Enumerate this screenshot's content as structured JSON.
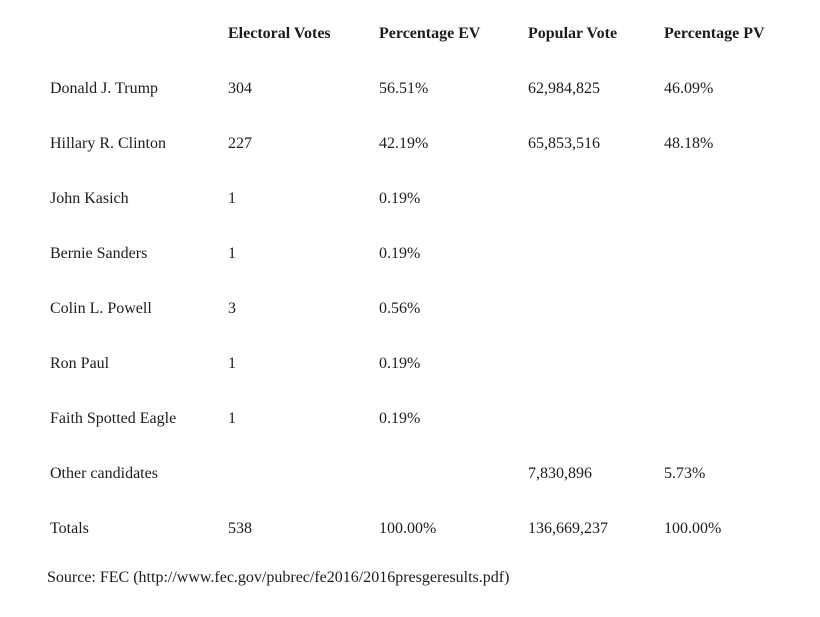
{
  "table": {
    "headers": {
      "name": "",
      "ev": "Electoral Votes",
      "pct_ev": "Percentage EV",
      "pv": "Popular Vote",
      "pct_pv": "Percentage PV"
    },
    "rows": [
      {
        "name": "Donald J. Trump",
        "ev": "304",
        "pct_ev": "56.51%",
        "pv": "62,984,825",
        "pct_pv": "46.09%"
      },
      {
        "name": "Hillary R. Clinton",
        "ev": "227",
        "pct_ev": "42.19%",
        "pv": "65,853,516",
        "pct_pv": "48.18%"
      },
      {
        "name": "John Kasich",
        "ev": "1",
        "pct_ev": "0.19%",
        "pv": "",
        "pct_pv": ""
      },
      {
        "name": "Bernie Sanders",
        "ev": "1",
        "pct_ev": "0.19%",
        "pv": "",
        "pct_pv": ""
      },
      {
        "name": "Colin L. Powell",
        "ev": "3",
        "pct_ev": "0.56%",
        "pv": "",
        "pct_pv": ""
      },
      {
        "name": "Ron Paul",
        "ev": "1",
        "pct_ev": "0.19%",
        "pv": "",
        "pct_pv": ""
      },
      {
        "name": "Faith Spotted Eagle",
        "ev": "1",
        "pct_ev": "0.19%",
        "pv": "",
        "pct_pv": ""
      },
      {
        "name": "Other candidates",
        "ev": "",
        "pct_ev": "",
        "pv": "7,830,896",
        "pct_pv": "5.73%"
      },
      {
        "name": "Totals",
        "ev": "538",
        "pct_ev": "100.00%",
        "pv": "136,669,237",
        "pct_pv": "100.00%"
      }
    ]
  },
  "source": "Source: FEC (http://www.fec.gov/pubrec/fe2016/2016presgeresults.pdf)"
}
